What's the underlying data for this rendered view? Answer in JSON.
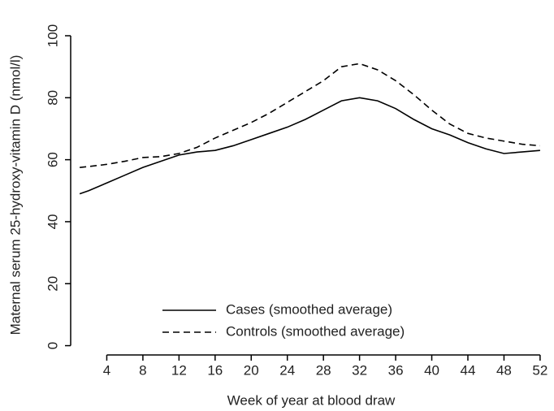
{
  "chart_data": {
    "type": "line",
    "x_label": "Week of year at blood draw",
    "y_label": "Maternal serum 25-hydroxy-vitamin D (nmol/l)",
    "x": [
      1,
      2,
      4,
      6,
      8,
      10,
      12,
      14,
      16,
      18,
      20,
      22,
      24,
      26,
      28,
      30,
      32,
      34,
      36,
      38,
      40,
      42,
      44,
      46,
      48,
      50,
      52
    ],
    "series": [
      {
        "name": "Cases (smoothed average)",
        "color": "#000000",
        "dash": "solid",
        "values": [
          49,
          50,
          52.5,
          55,
          57.5,
          59.5,
          61.5,
          62.5,
          63,
          64.5,
          66.5,
          68.5,
          70.5,
          73,
          76,
          79,
          80,
          79,
          76.5,
          73,
          70,
          68,
          65.5,
          63.5,
          62,
          62.5,
          63
        ]
      },
      {
        "name": "Controls (smoothed average)",
        "color": "#000000",
        "dash": "dashed",
        "values": [
          57.5,
          57.8,
          58.5,
          59.5,
          60.7,
          61,
          62,
          64,
          67,
          69.5,
          72,
          75,
          78.5,
          82,
          85.5,
          90,
          91,
          89,
          85.5,
          81,
          76,
          71.5,
          68.5,
          67,
          66,
          65,
          64.5
        ]
      }
    ],
    "xlim": [
      0,
      53
    ],
    "ylim": [
      -3,
      100
    ],
    "xticks": [
      4,
      8,
      12,
      16,
      20,
      24,
      28,
      32,
      36,
      40,
      44,
      48,
      52
    ],
    "yticks": [
      0,
      20,
      40,
      60,
      80,
      100
    ]
  }
}
